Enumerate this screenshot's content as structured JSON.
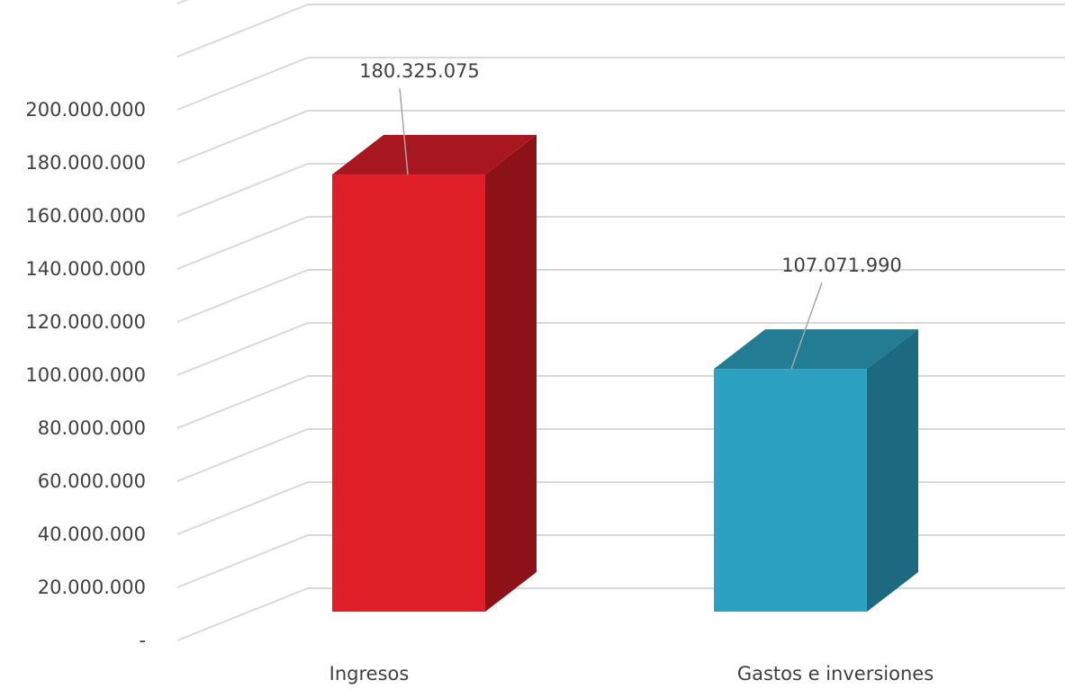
{
  "chart_data": {
    "type": "bar",
    "style": "3d-column",
    "categories": [
      "Ingresos",
      "Gastos e inversiones"
    ],
    "values": [
      180325075,
      107071990
    ],
    "data_labels": [
      "180.325.075",
      "107.071.990"
    ],
    "colors": {
      "front": [
        "#DE1F28",
        "#2CA1C1"
      ],
      "top": [
        "#A8171F",
        "#217C94"
      ],
      "side": [
        "#8C1217",
        "#1D6A80"
      ]
    },
    "ylim": [
      0,
      240000000
    ],
    "yticks": [
      0,
      20000000,
      40000000,
      60000000,
      80000000,
      100000000,
      120000000,
      140000000,
      160000000,
      180000000,
      200000000
    ],
    "ytick_labels": [
      "-",
      "20.000.000",
      "40.000.000",
      "60.000.000",
      "80.000.000",
      "100.000.000",
      "120.000.000",
      "140.000.000",
      "160.000.000",
      "180.000.000",
      "200.000.000"
    ],
    "grid": true,
    "grid_color": "#D9D9D9",
    "label_color": "#404040",
    "leader_color": "#A6A6A6"
  }
}
